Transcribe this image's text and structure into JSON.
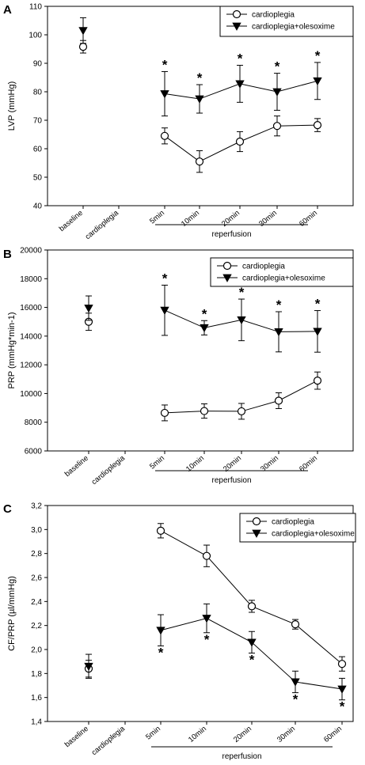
{
  "chart_data": [
    {
      "panel": "A",
      "type": "line",
      "ylabel": "LVP (mmHg)",
      "ylim": [
        40,
        110
      ],
      "yticks": [
        "40",
        "50",
        "60",
        "70",
        "80",
        "90",
        "100",
        "110"
      ],
      "categories": [
        "baseline",
        "cardioplegia",
        "5min",
        "10min",
        "20min",
        "30min",
        "60min"
      ],
      "bracket_label": "reperfusion",
      "legend_position": "top-right",
      "series": [
        {
          "name": "cardioplegia",
          "marker": "circle",
          "values": [
            95.8,
            null,
            64.5,
            55.5,
            62.5,
            68,
            68.3
          ],
          "errors": [
            2.2,
            null,
            2.8,
            3.8,
            3.5,
            3.5,
            2.3
          ]
        },
        {
          "name": "cardioplegia+olesoxime",
          "marker": "triangle-down",
          "values": [
            101.5,
            null,
            79.3,
            77.5,
            82.8,
            80,
            83.8
          ],
          "errors": [
            4.5,
            null,
            7.8,
            5,
            6.5,
            6.5,
            6.5
          ]
        }
      ],
      "significance": [
        false,
        false,
        true,
        true,
        true,
        true,
        true
      ]
    },
    {
      "panel": "B",
      "type": "line",
      "ylabel": "PRP (mmHg*min-1)",
      "ylim": [
        6000,
        20000
      ],
      "yticks": [
        "6000",
        "8000",
        "10000",
        "12000",
        "14000",
        "16000",
        "18000",
        "20000"
      ],
      "categories": [
        "baseline",
        "cardioplegia",
        "5min",
        "10min",
        "20min",
        "30min",
        "60min"
      ],
      "bracket_label": "reperfusion",
      "legend_position": "top-right",
      "series": [
        {
          "name": "cardioplegia",
          "marker": "circle",
          "values": [
            15000,
            null,
            8650,
            8780,
            8760,
            9500,
            10900
          ],
          "errors": [
            600,
            null,
            550,
            500,
            550,
            550,
            600
          ]
        },
        {
          "name": "cardioplegia+olesoxime",
          "marker": "triangle-down",
          "values": [
            15950,
            null,
            15800,
            14580,
            15130,
            14300,
            14330
          ],
          "errors": [
            850,
            null,
            1750,
            500,
            1450,
            1400,
            1450
          ]
        }
      ],
      "significance": [
        false,
        false,
        true,
        true,
        true,
        true,
        true
      ]
    },
    {
      "panel": "C",
      "type": "line",
      "ylabel": "CF/PRP (µl/mmHg)",
      "ylim": [
        1.4,
        3.2
      ],
      "yticks": [
        "1,4",
        "1,6",
        "1,8",
        "2,0",
        "2,2",
        "2,4",
        "2,6",
        "2,8",
        "3,0",
        "3,2"
      ],
      "categories": [
        "baseline",
        "cardioplegia",
        "5min",
        "10min",
        "20min",
        "30min",
        "60min"
      ],
      "bracket_label": "reperfusion",
      "legend_position": "top-right",
      "series": [
        {
          "name": "cardioplegia",
          "marker": "circle",
          "values": [
            1.84,
            null,
            2.99,
            2.78,
            2.36,
            2.21,
            1.88
          ],
          "errors": [
            0.07,
            null,
            0.06,
            0.09,
            0.05,
            0.04,
            0.06
          ]
        },
        {
          "name": "cardioplegia+olesoxime",
          "marker": "triangle-down",
          "values": [
            1.86,
            null,
            2.16,
            2.26,
            2.06,
            1.73,
            1.67
          ],
          "errors": [
            0.1,
            null,
            0.13,
            0.12,
            0.09,
            0.09,
            0.09
          ]
        }
      ],
      "significance": [
        false,
        false,
        true,
        true,
        true,
        true,
        true
      ]
    }
  ]
}
